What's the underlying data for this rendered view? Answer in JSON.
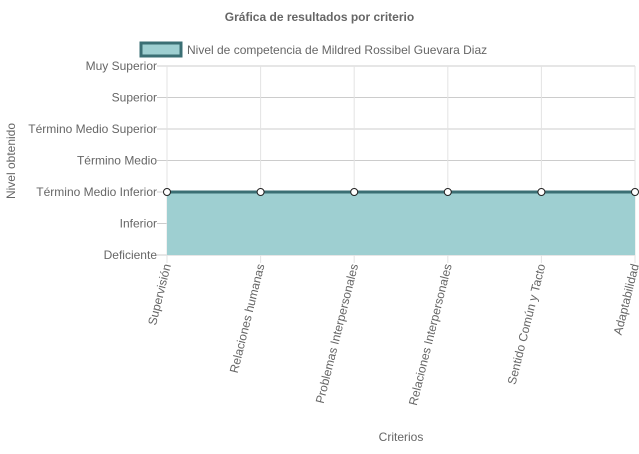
{
  "chart_data": {
    "type": "area",
    "title": "Gráfica de resultados por criterio",
    "xlabel": "Criterios",
    "ylabel": "Nivel obtenido",
    "levels": [
      "Deficiente",
      "Inferior",
      "Término Medio Inferior",
      "Término Medio",
      "Término Medio Superior",
      "Superior",
      "Muy Superior"
    ],
    "categories": [
      "Supervisión",
      "Relaciones humanas",
      "Problemas Interpersonales",
      "Relaciones Interpersonales",
      "Sentido Común y Tacto",
      "Adaptabilidad"
    ],
    "series": [
      {
        "name": "Nivel de competencia de Mildred Rossibel Guevara Diaz",
        "values": [
          "Término Medio Inferior",
          "Término Medio Inferior",
          "Término Medio Inferior",
          "Término Medio Inferior",
          "Término Medio Inferior",
          "Término Medio Inferior"
        ],
        "fill_color": "#9ecfd1",
        "line_color": "#3b6f74"
      }
    ],
    "legend_position": "top",
    "grid": true
  }
}
